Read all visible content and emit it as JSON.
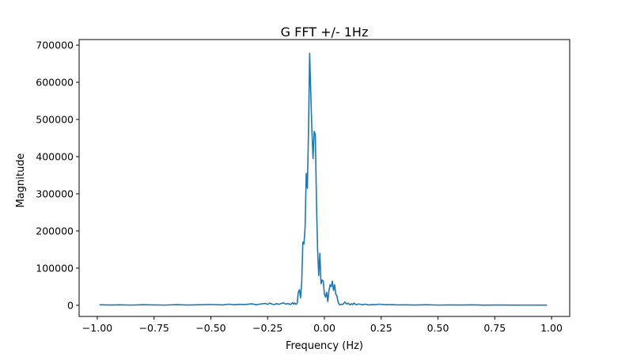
{
  "chart_data": {
    "type": "line",
    "title": "G FFT +/- 1Hz",
    "xlabel": "Frequency (Hz)",
    "ylabel": "Magnitude",
    "xlim": [
      -1.08,
      1.08
    ],
    "ylim": [
      -30000,
      715000
    ],
    "x_ticks": [
      -1.0,
      -0.75,
      -0.5,
      -0.25,
      0.0,
      0.25,
      0.5,
      0.75,
      1.0
    ],
    "x_tick_labels": [
      "−1.00",
      "−0.75",
      "−0.50",
      "−0.25",
      "0.00",
      "0.25",
      "0.50",
      "0.75",
      "1.00"
    ],
    "y_ticks": [
      0,
      100000,
      200000,
      300000,
      400000,
      500000,
      600000,
      700000
    ],
    "y_tick_labels": [
      "0",
      "100000",
      "200000",
      "300000",
      "400000",
      "500000",
      "600000",
      "700000"
    ],
    "grid": false,
    "legend": false,
    "series": [
      {
        "color": "#1f77b4",
        "x": [
          -0.99,
          -0.95,
          -0.9,
          -0.85,
          -0.8,
          -0.75,
          -0.7,
          -0.65,
          -0.6,
          -0.55,
          -0.5,
          -0.45,
          -0.42,
          -0.4,
          -0.37,
          -0.35,
          -0.32,
          -0.3,
          -0.28,
          -0.26,
          -0.25,
          -0.24,
          -0.23,
          -0.22,
          -0.21,
          -0.2,
          -0.19,
          -0.18,
          -0.17,
          -0.16,
          -0.15,
          -0.14,
          -0.135,
          -0.13,
          -0.125,
          -0.12,
          -0.115,
          -0.11,
          -0.105,
          -0.1,
          -0.095,
          -0.09,
          -0.085,
          -0.08,
          -0.075,
          -0.07,
          -0.065,
          -0.06,
          -0.055,
          -0.05,
          -0.045,
          -0.04,
          -0.035,
          -0.03,
          -0.025,
          -0.02,
          -0.015,
          -0.01,
          -0.005,
          0.0,
          0.005,
          0.01,
          0.015,
          0.02,
          0.025,
          0.03,
          0.035,
          0.04,
          0.045,
          0.05,
          0.055,
          0.06,
          0.065,
          0.07,
          0.075,
          0.08,
          0.085,
          0.09,
          0.095,
          0.1,
          0.105,
          0.11,
          0.115,
          0.12,
          0.125,
          0.13,
          0.14,
          0.15,
          0.16,
          0.17,
          0.18,
          0.19,
          0.2,
          0.21,
          0.22,
          0.24,
          0.26,
          0.28,
          0.3,
          0.32,
          0.35,
          0.4,
          0.45,
          0.5,
          0.55,
          0.6,
          0.65,
          0.7,
          0.75,
          0.8,
          0.85,
          0.9,
          0.95,
          0.98
        ],
        "y": [
          1500,
          800,
          1200,
          600,
          1500,
          900,
          600,
          1800,
          700,
          1500,
          2200,
          900,
          3000,
          1500,
          2500,
          2000,
          4000,
          1500,
          3500,
          5000,
          2500,
          6000,
          3000,
          2000,
          4500,
          2500,
          5000,
          6500,
          3000,
          5000,
          2000,
          7000,
          3000,
          6000,
          2500,
          5000,
          35000,
          42000,
          20000,
          60000,
          170000,
          165000,
          210000,
          355000,
          315000,
          470000,
          678000,
          570000,
          470000,
          395000,
          468000,
          460000,
          280000,
          150000,
          80000,
          140000,
          58000,
          68000,
          65000,
          30000,
          22000,
          35000,
          10000,
          40000,
          55000,
          50000,
          65000,
          40000,
          55000,
          30000,
          25000,
          10000,
          2500,
          1500,
          3000,
          2000,
          5000,
          9000,
          5000,
          3500,
          6000,
          2500,
          1500,
          4500,
          2000,
          6000,
          1500,
          3500,
          2500,
          1500,
          3000,
          1500,
          1000,
          2000,
          1500,
          3000,
          2000,
          1500,
          1800,
          1000,
          1200,
          800,
          1500,
          600,
          900,
          700,
          1200,
          500,
          800,
          700,
          400,
          600,
          500,
          400
        ]
      }
    ]
  }
}
